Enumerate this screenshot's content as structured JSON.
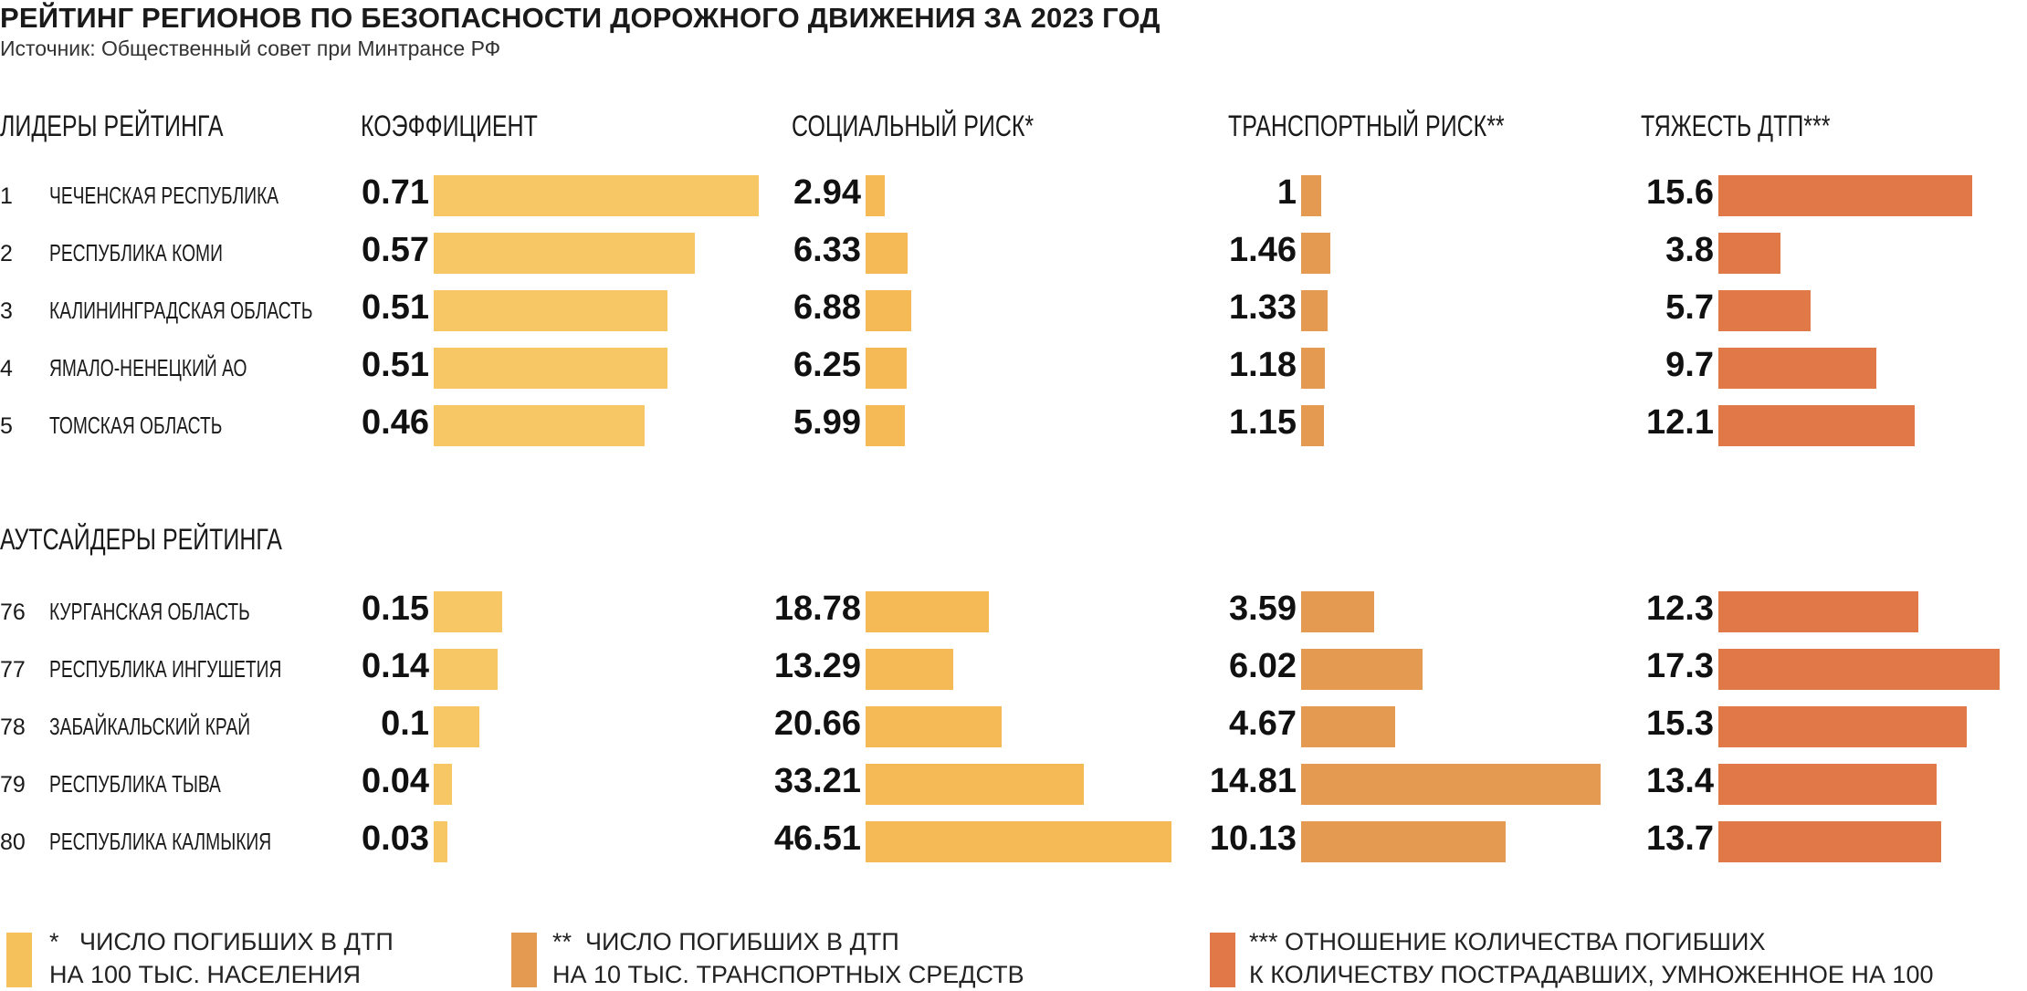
{
  "title": "РЕЙТИНГ РЕГИОНОВ ПО БЕЗОПАСНОСТИ ДОРОЖНОГО ДВИЖЕНИЯ ЗА 2023 ГОД",
  "subtitle": "Источник: Общественный совет при Минтрансе РФ",
  "headers": {
    "leaders": "ЛИДЕРЫ РЕЙТИНГА",
    "outsiders": "АУТСАЙДЕРЫ РЕЙТИНГА",
    "coef": "КОЭФФИЦИЕНТ",
    "social": "СОЦИАЛЬНЫЙ РИСК*",
    "transport": "ТРАНСПОРТНЫЙ РИСК**",
    "severity": "ТЯЖЕСТЬ ДТП***"
  },
  "colors": {
    "coef": "#f7c766",
    "social": "#f5b955",
    "transport": "#e59a52",
    "severity": "#e07848"
  },
  "legend": [
    {
      "line1": "*   ЧИСЛО ПОГИБШИХ В ДТП",
      "line2": "НА 100 ТЫС. НАСЕЛЕНИЯ",
      "color": "#f5c15a"
    },
    {
      "line1": "**  ЧИСЛО ПОГИБШИХ В ДТП",
      "line2": "НА 10 ТЫС. ТРАНСПОРТНЫХ СРЕДСТВ",
      "color": "#e59a52"
    },
    {
      "line1": "*** ОТНОШЕНИЕ КОЛИЧЕСТВА ПОГИБШИХ",
      "line2": "К КОЛИЧЕСТВУ ПОСТРАДАВШИХ, УМНОЖЕННОЕ НА 100",
      "color": "#e07848"
    }
  ],
  "chart_data": {
    "type": "bar",
    "orientation": "horizontal",
    "groups": [
      {
        "name": "ЛИДЕРЫ РЕЙТИНГА",
        "rows": [
          {
            "rank": "1",
            "region": "ЧЕЧЕНСКАЯ РЕСПУБЛИКА",
            "coef": "0.71",
            "social": "2.94",
            "transport": "1",
            "severity": "15.6"
          },
          {
            "rank": "2",
            "region": "РЕСПУБЛИКА КОМИ",
            "coef": "0.57",
            "social": "6.33",
            "transport": "1.46",
            "severity": "3.8"
          },
          {
            "rank": "3",
            "region": "КАЛИНИНГРАДСКАЯ ОБЛАСТЬ",
            "coef": "0.51",
            "social": "6.88",
            "transport": "1.33",
            "severity": "5.7"
          },
          {
            "rank": "4",
            "region": "ЯМАЛО-НЕНЕЦКИЙ АО",
            "coef": "0.51",
            "social": "6.25",
            "transport": "1.18",
            "severity": "9.7"
          },
          {
            "rank": "5",
            "region": "ТОМСКАЯ ОБЛАСТЬ",
            "coef": "0.46",
            "social": "5.99",
            "transport": "1.15",
            "severity": "12.1"
          }
        ]
      },
      {
        "name": "АУТСАЙДЕРЫ РЕЙТИНГА",
        "rows": [
          {
            "rank": "76",
            "region": "КУРГАНСКАЯ ОБЛАСТЬ",
            "coef": "0.15",
            "social": "18.78",
            "transport": "3.59",
            "severity": "12.3"
          },
          {
            "rank": "77",
            "region": "РЕСПУБЛИКА ИНГУШЕТИЯ",
            "coef": "0.14",
            "social": "13.29",
            "transport": "6.02",
            "severity": "17.3"
          },
          {
            "rank": "78",
            "region": "ЗАБАЙКАЛЬСКИЙ КРАЙ",
            "coef": "0.1",
            "social": "20.66",
            "transport": "4.67",
            "severity": "15.3"
          },
          {
            "rank": "79",
            "region": "РЕСПУБЛИКА ТЫВА",
            "coef": "0.04",
            "social": "33.21",
            "transport": "14.81",
            "severity": "13.4"
          },
          {
            "rank": "80",
            "region": "РЕСПУБЛИКА КАЛМЫКИЯ",
            "coef": "0.03",
            "social": "46.51",
            "transport": "10.13",
            "severity": "13.7"
          }
        ]
      }
    ],
    "series": [
      {
        "key": "coef",
        "name": "КОЭФФИЦИЕНТ"
      },
      {
        "key": "social",
        "name": "СОЦИАЛЬНЫЙ РИСК*"
      },
      {
        "key": "transport",
        "name": "ТРАНСПОРТНЫЙ РИСК**"
      },
      {
        "key": "severity",
        "name": "ТЯЖЕСТЬ ДТП***"
      }
    ]
  }
}
